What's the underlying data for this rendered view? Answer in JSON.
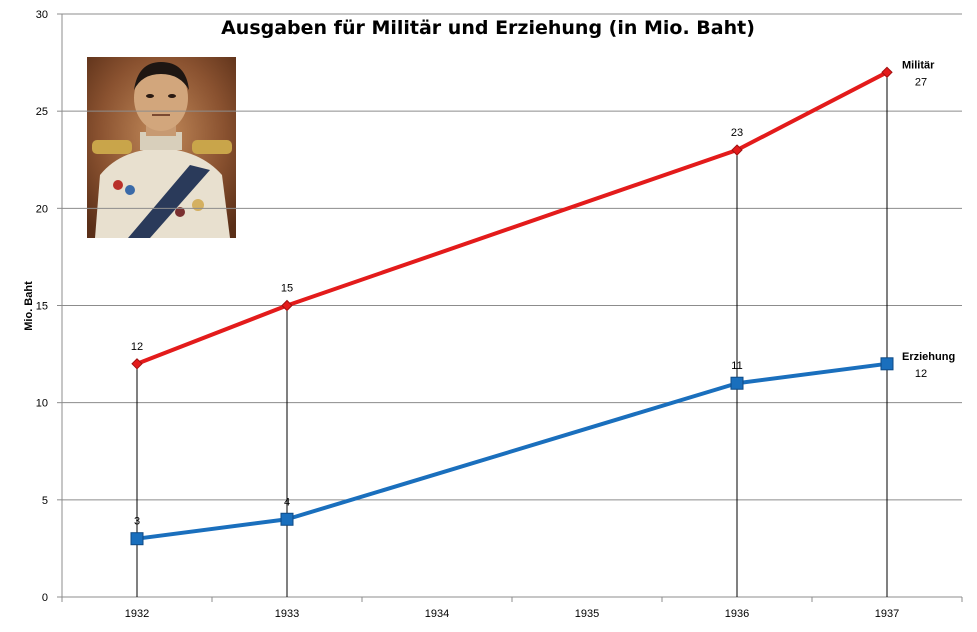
{
  "chart_data": {
    "type": "line",
    "title": "Ausgaben für Militär und Erziehung (in Mio. Baht)",
    "xlabel": "",
    "ylabel": "Mio. Baht",
    "categories": [
      "1932",
      "1933",
      "1934",
      "1935",
      "1936",
      "1937"
    ],
    "y_ticks": [
      "0",
      "5",
      "10",
      "15",
      "20",
      "25",
      "30"
    ],
    "ylim": [
      0,
      30
    ],
    "grid": "horizontal",
    "legend": "none",
    "series": [
      {
        "name": "Militär",
        "color": "#e31b1b",
        "marker": "diamond",
        "points": [
          {
            "x": "1932",
            "y": 12,
            "label": "12"
          },
          {
            "x": "1933",
            "y": 15,
            "label": "15"
          },
          {
            "x": "1936",
            "y": 23,
            "label": "23"
          },
          {
            "x": "1937",
            "y": 27,
            "label": "27"
          }
        ]
      },
      {
        "name": "Erziehung",
        "color": "#1a6fbd",
        "marker": "square",
        "points": [
          {
            "x": "1932",
            "y": 3,
            "label": "3"
          },
          {
            "x": "1933",
            "y": 4,
            "label": "4"
          },
          {
            "x": "1936",
            "y": 11,
            "label": "11"
          },
          {
            "x": "1937",
            "y": 12,
            "label": "12"
          }
        ]
      }
    ],
    "drop_lines_at": [
      "1932",
      "1933",
      "1936",
      "1937"
    ]
  }
}
